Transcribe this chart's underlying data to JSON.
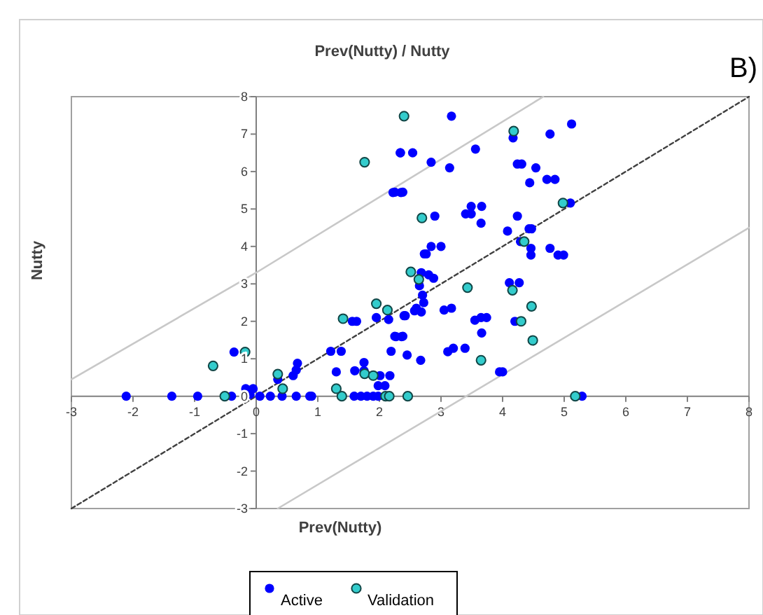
{
  "chart_data": {
    "type": "scatter",
    "title": "Prev(Nutty) / Nutty",
    "xlabel": "Prev(Nutty)",
    "ylabel": "Nutty",
    "annotations": [
      "B)"
    ],
    "xlim": [
      -3,
      8
    ],
    "ylim": [
      -3,
      8
    ],
    "xticks": [
      -3,
      -2,
      -1,
      0,
      1,
      2,
      3,
      4,
      5,
      6,
      7,
      8
    ],
    "yticks": [
      -3,
      -2,
      -1,
      0,
      1,
      2,
      3,
      4,
      5,
      6,
      7,
      8
    ],
    "grid": false,
    "legend": "bottom",
    "series": [
      {
        "type": "line",
        "color": "#c8c8c8",
        "line_style": "solid",
        "x": [
          -3,
          0,
          4.66
        ],
        "values": [
          0.45,
          3.3,
          8
        ]
      },
      {
        "type": "line",
        "color": "#c8c8c8",
        "line_style": "solid",
        "x": [
          0.35,
          8
        ],
        "values": [
          -3,
          4.5
        ]
      },
      {
        "type": "line",
        "color": "#404040",
        "line_style": "dashed",
        "x": [
          -3,
          8
        ],
        "values": [
          -3,
          8
        ]
      },
      {
        "name": "Active",
        "color": "#0000ff",
        "marker": "circle",
        "x": [
          -2.11,
          -1.37,
          -0.95,
          -0.4,
          0.06,
          0.23,
          0.42,
          0.65,
          0.87,
          0.9,
          1.59,
          1.7,
          1.8,
          1.9,
          1.98,
          5.29,
          -0.17,
          -0.05,
          -0.1,
          2.34,
          2.22,
          2.35,
          1.95,
          2.15,
          2.4,
          2.25,
          2.38,
          1.56,
          1.63,
          2.19,
          2.45,
          1.21,
          1.38,
          1.3,
          -0.36,
          0.35,
          0.6,
          0.65,
          0.67,
          1.6,
          1.75,
          1.75,
          2.01,
          2.17,
          1.98,
          2.09,
          3.17,
          4.17,
          4.77,
          5.12,
          2.34,
          2.54,
          2.84,
          3.14,
          3.56,
          4.24,
          4.31,
          4.54,
          4.44,
          4.72,
          4.85,
          2.25,
          2.38,
          5.1,
          3.49,
          3.66,
          3.4,
          3.49,
          3.65,
          2.9,
          4.24,
          4.08,
          4.43,
          4.47,
          4.29,
          2.84,
          3.0,
          2.73,
          2.76,
          4.46,
          4.46,
          4.77,
          4.9,
          4.99,
          2.68,
          2.8,
          2.88,
          2.65,
          2.7,
          2.72,
          2.6,
          2.68,
          4.11,
          4.27,
          2.42,
          2.57,
          3.05,
          3.17,
          3.55,
          3.65,
          3.74,
          3.66,
          4.2,
          2.27,
          2.36,
          2.67,
          3.11,
          3.2,
          3.39,
          3.95,
          4.0
        ],
        "values": [
          0,
          0,
          0,
          0,
          0,
          0,
          0,
          0,
          0,
          0,
          0,
          0,
          0,
          0,
          0,
          0,
          0.2,
          0.2,
          0.05,
          6.5,
          5.44,
          5.44,
          2.1,
          2.05,
          2.15,
          1.6,
          1.6,
          2.0,
          2.0,
          1.2,
          1.1,
          1.2,
          1.2,
          0.65,
          1.18,
          0.45,
          0.55,
          0.7,
          0.88,
          0.68,
          0.68,
          0.9,
          0.55,
          0.55,
          0.28,
          0.28,
          7.48,
          6.9,
          7.0,
          7.27,
          6.5,
          6.5,
          6.25,
          6.1,
          6.6,
          6.2,
          6.2,
          6.1,
          5.7,
          5.79,
          5.79,
          5.45,
          5.45,
          5.16,
          5.07,
          5.07,
          4.87,
          4.87,
          4.62,
          4.81,
          4.81,
          4.41,
          4.47,
          4.47,
          4.13,
          4.0,
          4.0,
          3.8,
          3.8,
          3.95,
          3.77,
          3.95,
          3.77,
          3.77,
          3.3,
          3.24,
          3.15,
          2.95,
          2.7,
          2.5,
          2.35,
          2.25,
          3.03,
          3.03,
          2.15,
          2.28,
          2.3,
          2.35,
          2.03,
          2.1,
          2.1,
          1.69,
          2.0,
          1.59,
          1.59,
          0.96,
          1.19,
          1.28,
          1.28,
          0.65,
          0.65
        ]
      },
      {
        "name": "Validation",
        "color": "#33cccc",
        "marker": "circle",
        "x": [
          -0.51,
          1.39,
          2.1,
          2.16,
          2.46,
          5.18,
          2.4,
          1.76,
          1.95,
          2.13,
          1.41,
          -0.18,
          -0.7,
          0.35,
          0.43,
          1.3,
          1.76,
          1.9,
          4.18,
          4.98,
          2.69,
          4.35,
          2.51,
          2.64,
          3.43,
          4.16,
          4.47,
          4.3,
          4.49,
          3.65
        ],
        "values": [
          0,
          0,
          0,
          0,
          0,
          0,
          7.48,
          6.25,
          2.47,
          2.3,
          2.07,
          1.18,
          0.81,
          0.59,
          0.2,
          0.2,
          0.6,
          0.55,
          7.08,
          5.16,
          4.76,
          4.13,
          3.32,
          3.12,
          2.9,
          2.83,
          2.4,
          2.0,
          1.49,
          0.96
        ]
      }
    ]
  }
}
